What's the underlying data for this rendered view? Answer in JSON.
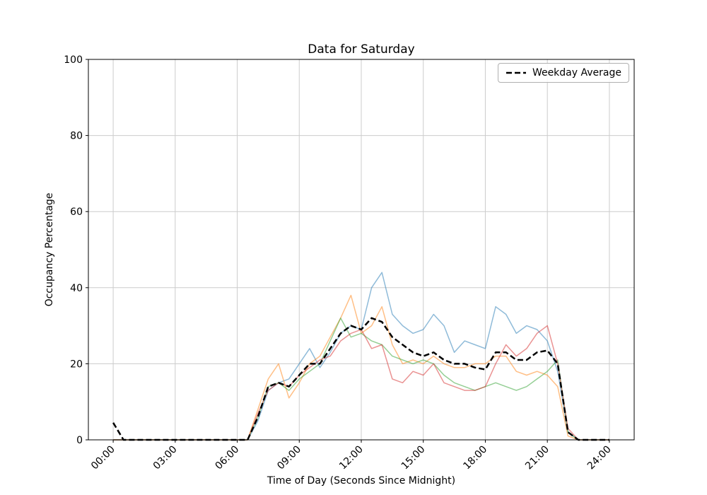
{
  "title": "Data for Saturday",
  "xlabel": "Time of Day (Seconds Since Midnight)",
  "ylabel": "Occupancy Percentage",
  "legend": {
    "items": [
      {
        "label": "Weekday Average",
        "color": "#000000",
        "dash": "7 4"
      }
    ]
  },
  "chart_data": {
    "type": "line",
    "title": "Data for Saturday",
    "xlabel": "Time of Day (Seconds Since Midnight)",
    "ylabel": "Occupancy Percentage",
    "grid": true,
    "grid_color": "#cccccc",
    "legend_position": "upper right",
    "xlim": [
      -1.2,
      25.2
    ],
    "ylim": [
      0,
      100
    ],
    "x_unit": "hours-since-midnight",
    "x_ticks": [
      {
        "value": 0,
        "label": "00:00"
      },
      {
        "value": 3,
        "label": "03:00"
      },
      {
        "value": 6,
        "label": "06:00"
      },
      {
        "value": 9,
        "label": "09:00"
      },
      {
        "value": 12,
        "label": "12:00"
      },
      {
        "value": 15,
        "label": "15:00"
      },
      {
        "value": 18,
        "label": "18:00"
      },
      {
        "value": 21,
        "label": "21:00"
      },
      {
        "value": 24,
        "label": "24:00"
      }
    ],
    "y_ticks": [
      {
        "value": 0,
        "label": "0"
      },
      {
        "value": 20,
        "label": "20"
      },
      {
        "value": 40,
        "label": "40"
      },
      {
        "value": 60,
        "label": "60"
      },
      {
        "value": 80,
        "label": "80"
      },
      {
        "value": 100,
        "label": "100"
      }
    ],
    "x_hours": [
      0,
      0.5,
      1,
      1.5,
      2,
      2.5,
      3,
      3.5,
      4,
      4.5,
      5,
      5.5,
      6,
      6.5,
      7,
      7.5,
      8,
      8.5,
      9,
      9.5,
      10,
      10.5,
      11,
      11.5,
      12,
      12.5,
      13,
      13.5,
      14,
      14.5,
      15,
      15.5,
      16,
      16.5,
      17,
      17.5,
      18,
      18.5,
      19,
      19.5,
      20,
      20.5,
      21,
      21.5,
      22,
      22.5,
      23,
      23.5,
      24
    ],
    "series": [
      {
        "name": "saturday-sample-blue",
        "color": "#1f77b4",
        "opacity": 0.5,
        "width": 1.5,
        "dash": "",
        "values": [
          0,
          0,
          0,
          0,
          0,
          0,
          0,
          0,
          0,
          0,
          0,
          0,
          0,
          0,
          5,
          13,
          15,
          16,
          20,
          24,
          19,
          23,
          28,
          30,
          29,
          40,
          44,
          33,
          30,
          28,
          29,
          33,
          30,
          23,
          26,
          25,
          24,
          35,
          33,
          28,
          30,
          29,
          26,
          18,
          2,
          0,
          0,
          0,
          0
        ]
      },
      {
        "name": "saturday-sample-orange",
        "color": "#ff7f0e",
        "opacity": 0.5,
        "width": 1.5,
        "dash": "",
        "values": [
          0,
          0,
          0,
          0,
          0,
          0,
          0,
          0,
          0,
          0,
          0,
          0,
          0,
          0,
          8,
          16,
          20,
          11,
          15,
          20,
          22,
          27,
          32,
          38,
          28,
          30,
          35,
          25,
          20,
          21,
          20,
          22,
          20,
          19,
          19,
          20,
          20,
          22,
          22,
          18,
          17,
          18,
          17,
          14,
          1,
          0,
          0,
          0,
          0
        ]
      },
      {
        "name": "saturday-sample-green",
        "color": "#2ca02c",
        "opacity": 0.5,
        "width": 1.5,
        "dash": "",
        "values": [
          0,
          0,
          0,
          0,
          0,
          0,
          0,
          0,
          0,
          0,
          0,
          0,
          0,
          0,
          6,
          14,
          15,
          13,
          16,
          18,
          20,
          26,
          32,
          27,
          28,
          26,
          25,
          22,
          21,
          20,
          21,
          20,
          17,
          15,
          14,
          13,
          14,
          15,
          14,
          13,
          14,
          16,
          18,
          21,
          2,
          0,
          0,
          0,
          0
        ]
      },
      {
        "name": "saturday-sample-red",
        "color": "#d62728",
        "opacity": 0.5,
        "width": 1.5,
        "dash": "",
        "values": [
          0,
          0,
          0,
          0,
          0,
          0,
          0,
          0,
          0,
          0,
          0,
          0,
          0,
          0,
          7,
          13,
          15,
          14,
          17,
          19,
          21,
          22,
          26,
          28,
          29,
          24,
          25,
          16,
          15,
          18,
          17,
          20,
          15,
          14,
          13,
          13,
          14,
          20,
          25,
          22,
          24,
          28,
          30,
          20,
          3,
          0,
          0,
          0,
          0
        ]
      },
      {
        "name": "weekday-average",
        "color": "#000000",
        "opacity": 1,
        "width": 2.5,
        "dash": "8 4",
        "values": [
          4.5,
          0,
          0,
          0,
          0,
          0,
          0,
          0,
          0,
          0,
          0,
          0,
          0,
          0,
          6,
          14,
          15,
          14,
          17,
          20,
          20,
          24,
          28,
          30,
          29,
          32,
          31,
          27,
          25,
          23,
          22,
          23,
          21,
          20,
          20,
          19,
          18.5,
          23,
          23,
          21,
          21,
          23,
          23.5,
          20,
          2,
          0,
          0,
          0,
          0
        ]
      }
    ]
  }
}
